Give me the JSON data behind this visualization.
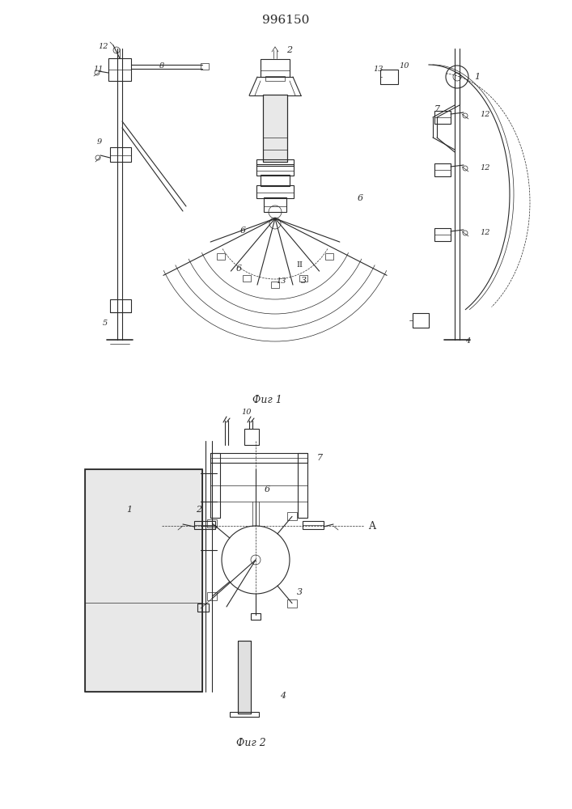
{
  "title": "996150",
  "lc": "#2a2a2a",
  "lw": 0.8,
  "lw_thin": 0.5,
  "lw_thick": 1.2,
  "fig1_caption": "Фиг 1",
  "fig2_caption": "Фиг 2"
}
